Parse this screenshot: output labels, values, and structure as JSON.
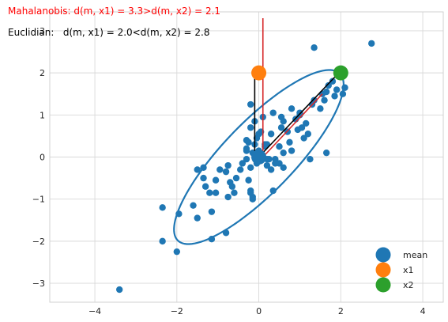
{
  "chart_data": {
    "type": "scatter",
    "title_mahalanobis": "Mahalanobis: d(m, x1) = 3.3>d(m, x2) = 2.1",
    "title_euclidean": "Euclidian:   d(m, x1) = 2.0<d(m, x2) = 2.8",
    "xlim": [
      -5.1,
      4.5
    ],
    "ylim": [
      -3.45,
      3.45
    ],
    "xticks": [
      -4,
      -2,
      0,
      2,
      4
    ],
    "yticks": [
      -3,
      -2,
      -1,
      0,
      1,
      2,
      3
    ],
    "xtick_labels": [
      "−4",
      "−2",
      "0",
      "2",
      "4"
    ],
    "ytick_labels": [
      "−3",
      "−2",
      "−1",
      "0",
      "1",
      "2",
      "3"
    ],
    "grid": true,
    "legend_position": "bottom-right",
    "points": {
      "x": [
        -3.4,
        -2.35,
        -2.35,
        -1.95,
        -2.0,
        -1.6,
        -1.5,
        -1.3,
        -1.2,
        -1.15,
        -1.35,
        -1.5,
        -1.35,
        -1.05,
        -1.15,
        -1.05,
        -0.95,
        -0.8,
        -0.75,
        -0.7,
        -0.75,
        -0.8,
        -0.65,
        -0.55,
        -0.6,
        -0.45,
        -0.4,
        -0.3,
        -0.25,
        -0.2,
        -0.15,
        -0.3,
        -0.1,
        -0.05,
        0.0,
        -0.05,
        0.05,
        0.1,
        0.15,
        0.2,
        -0.05,
        0.0,
        0.05,
        -0.1,
        0.1,
        0.15,
        -0.2,
        -0.15,
        -0.3,
        -0.25,
        -0.2,
        0.2,
        0.3,
        0.3,
        0.4,
        0.5,
        0.5,
        0.35,
        0.55,
        0.6,
        0.7,
        0.75,
        0.6,
        0.4,
        0.55,
        0.8,
        0.9,
        0.95,
        1.0,
        1.05,
        1.1,
        1.2,
        1.25,
        1.3,
        1.35,
        1.5,
        1.55,
        1.6,
        1.65,
        1.7,
        1.8,
        1.85,
        1.9,
        2.05,
        2.1,
        1.35,
        1.65,
        2.75,
        0.25,
        0.6,
        -0.15,
        -0.2,
        0.8,
        1.0,
        1.15,
        -0.2,
        -0.1,
        0.0,
        0.2,
        -0.3,
        0.35
      ],
      "y": [
        -3.15,
        -1.2,
        -2.0,
        -1.35,
        -2.25,
        -1.15,
        -1.45,
        -0.7,
        -0.85,
        -1.3,
        -0.25,
        -0.3,
        -0.5,
        -0.85,
        -1.95,
        -0.55,
        -0.3,
        -1.8,
        -0.95,
        -0.6,
        -0.2,
        -0.35,
        -0.7,
        -0.5,
        -0.85,
        -0.3,
        -0.15,
        -0.05,
        -0.55,
        -0.25,
        0.1,
        0.4,
        0.05,
        0.1,
        0.15,
        -0.15,
        0.05,
        0.0,
        0.3,
        -0.05,
        0.45,
        0.55,
        0.6,
        0.85,
        0.95,
        0.25,
        -0.8,
        -0.95,
        0.2,
        0.35,
        0.7,
        -0.2,
        -0.3,
        0.55,
        -0.05,
        -0.15,
        0.25,
        1.05,
        0.95,
        0.85,
        0.6,
        0.35,
        0.1,
        -0.15,
        0.7,
        1.15,
        0.9,
        0.65,
        1.0,
        0.7,
        0.45,
        0.55,
        -0.05,
        1.25,
        1.35,
        1.15,
        1.5,
        1.35,
        1.55,
        1.7,
        1.8,
        1.45,
        1.6,
        1.5,
        1.65,
        2.6,
        0.1,
        2.7,
        -0.05,
        -0.25,
        -1.0,
        1.25,
        0.15,
        1.05,
        0.8,
        -0.85,
        0.3,
        0.05,
        0.3,
        0.15,
        -0.8
      ]
    },
    "series": [
      {
        "name": "mean",
        "x": 0.0,
        "y": 0.0,
        "color": "#1f77b4"
      },
      {
        "name": "x1",
        "x": 0.0,
        "y": 2.0,
        "color": "#ff7f0e"
      },
      {
        "name": "x2",
        "x": 2.0,
        "y": 2.0,
        "color": "#2ca02c"
      }
    ],
    "point_color": "#1f77b4",
    "ellipse": {
      "center": [
        0.0,
        0.0
      ],
      "semi_major": 2.8,
      "semi_minor": 0.85,
      "angle_deg": 45,
      "color": "#1f77b4"
    },
    "black_lines": [
      {
        "from": [
          -0.1,
          0.0
        ],
        "to": [
          -0.1,
          2.0
        ]
      },
      {
        "from": [
          0.0,
          0.0
        ],
        "to": [
          1.95,
          2.0
        ]
      }
    ],
    "red_lines": [
      {
        "from": [
          0.1,
          0.0
        ],
        "to": [
          0.1,
          3.3
        ]
      },
      {
        "from": [
          0.1,
          0.0
        ],
        "to": [
          1.55,
          1.5
        ]
      }
    ],
    "line_colors": {
      "black": "#000000",
      "red": "#d62728"
    },
    "title_colors": {
      "mahalanobis": "#ff0000",
      "euclidean": "#000000"
    }
  }
}
